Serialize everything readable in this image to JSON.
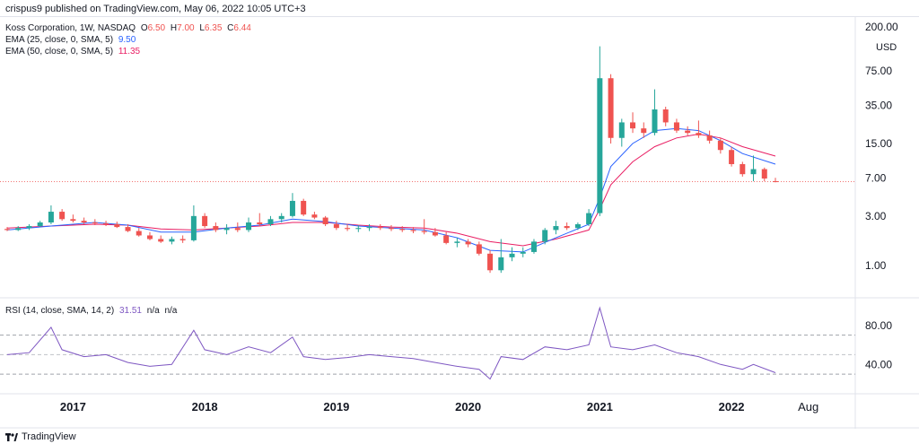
{
  "header": {
    "published": "crispus9 published on TradingView.com, May 06, 2022 10:05 UTC+3"
  },
  "legend_main": {
    "title": "Koss Corporation, 1W, NASDAQ",
    "o_label": "O",
    "o_value": "6.50",
    "h_label": "H",
    "h_value": "7.00",
    "l_label": "L",
    "l_value": "6.35",
    "c_label": "C",
    "c_value": "6.44",
    "ema25_label": "EMA (25, close, 0, SMA, 5)",
    "ema25_value": "9.50",
    "ema50_label": "EMA (50, close, 0, SMA, 5)",
    "ema50_value": "11.35"
  },
  "legend_rsi": {
    "label": "RSI (14, close, SMA, 14, 2)",
    "value": "31.51",
    "na1": "n/a",
    "na2": "n/a"
  },
  "currency": "USD",
  "footer": {
    "brand": "TradingView"
  },
  "colors": {
    "up": "#26a69a",
    "down": "#ef5350",
    "ema25": "#2962ff",
    "ema50": "#e91e63",
    "rsi": "#7e57c2",
    "text": "#131722",
    "grid": "#e0e3eb"
  },
  "chart_data": [
    {
      "type": "candlestick",
      "scale": "log",
      "y_ticks": [
        "200.00",
        "75.00",
        "35.00",
        "15.00",
        "7.00",
        "3.00",
        "1.00"
      ],
      "x_ticks": [
        "2017",
        "2018",
        "2019",
        "2020",
        "2021",
        "2022",
        "Aug"
      ],
      "last_price": 6.44,
      "candles": [
        {
          "x": "2016-07",
          "o": 2.25,
          "h": 2.35,
          "l": 2.15,
          "c": 2.2
        },
        {
          "x": "2016-08",
          "o": 2.2,
          "h": 2.4,
          "l": 2.15,
          "c": 2.3
        },
        {
          "x": "2016-09",
          "o": 2.3,
          "h": 2.5,
          "l": 2.2,
          "c": 2.4
        },
        {
          "x": "2016-10",
          "o": 2.4,
          "h": 2.7,
          "l": 2.35,
          "c": 2.6
        },
        {
          "x": "2016-11",
          "o": 2.6,
          "h": 3.8,
          "l": 2.5,
          "c": 3.3
        },
        {
          "x": "2016-12",
          "o": 3.3,
          "h": 3.5,
          "l": 2.7,
          "c": 2.8
        },
        {
          "x": "2017-01",
          "o": 2.8,
          "h": 3.1,
          "l": 2.6,
          "c": 2.7
        },
        {
          "x": "2017-02",
          "o": 2.7,
          "h": 2.9,
          "l": 2.5,
          "c": 2.6
        },
        {
          "x": "2017-03",
          "o": 2.6,
          "h": 2.8,
          "l": 2.45,
          "c": 2.55
        },
        {
          "x": "2017-04",
          "o": 2.55,
          "h": 2.7,
          "l": 2.4,
          "c": 2.5
        },
        {
          "x": "2017-05",
          "o": 2.5,
          "h": 2.65,
          "l": 2.3,
          "c": 2.35
        },
        {
          "x": "2017-06",
          "o": 2.35,
          "h": 2.5,
          "l": 2.1,
          "c": 2.15
        },
        {
          "x": "2017-07",
          "o": 2.15,
          "h": 2.3,
          "l": 1.9,
          "c": 1.95
        },
        {
          "x": "2017-08",
          "o": 1.95,
          "h": 2.1,
          "l": 1.75,
          "c": 1.8
        },
        {
          "x": "2017-09",
          "o": 1.8,
          "h": 1.95,
          "l": 1.65,
          "c": 1.7
        },
        {
          "x": "2017-10",
          "o": 1.7,
          "h": 1.9,
          "l": 1.6,
          "c": 1.8
        },
        {
          "x": "2017-11",
          "o": 1.8,
          "h": 1.95,
          "l": 1.65,
          "c": 1.75
        },
        {
          "x": "2017-12",
          "o": 1.75,
          "h": 3.8,
          "l": 1.7,
          "c": 3.0
        },
        {
          "x": "2018-01",
          "o": 3.0,
          "h": 3.2,
          "l": 2.3,
          "c": 2.4
        },
        {
          "x": "2018-02",
          "o": 2.4,
          "h": 2.6,
          "l": 2.1,
          "c": 2.2
        },
        {
          "x": "2018-03",
          "o": 2.2,
          "h": 2.5,
          "l": 2.0,
          "c": 2.3
        },
        {
          "x": "2018-04",
          "o": 2.3,
          "h": 2.6,
          "l": 2.1,
          "c": 2.2
        },
        {
          "x": "2018-05",
          "o": 2.2,
          "h": 2.9,
          "l": 2.1,
          "c": 2.6
        },
        {
          "x": "2018-06",
          "o": 2.6,
          "h": 3.2,
          "l": 2.4,
          "c": 2.5
        },
        {
          "x": "2018-07",
          "o": 2.5,
          "h": 3.0,
          "l": 2.4,
          "c": 2.8
        },
        {
          "x": "2018-08",
          "o": 2.8,
          "h": 3.2,
          "l": 2.6,
          "c": 3.0
        },
        {
          "x": "2018-09",
          "o": 3.0,
          "h": 5.0,
          "l": 2.9,
          "c": 4.2
        },
        {
          "x": "2018-10",
          "o": 4.2,
          "h": 4.4,
          "l": 3.0,
          "c": 3.1
        },
        {
          "x": "2018-11",
          "o": 3.1,
          "h": 3.3,
          "l": 2.8,
          "c": 2.9
        },
        {
          "x": "2018-12",
          "o": 2.9,
          "h": 3.0,
          "l": 2.4,
          "c": 2.5
        },
        {
          "x": "2019-01",
          "o": 2.5,
          "h": 2.7,
          "l": 2.2,
          "c": 2.3
        },
        {
          "x": "2019-02",
          "o": 2.3,
          "h": 2.5,
          "l": 2.15,
          "c": 2.25
        },
        {
          "x": "2019-03",
          "o": 2.25,
          "h": 2.45,
          "l": 2.1,
          "c": 2.3
        },
        {
          "x": "2019-04",
          "o": 2.3,
          "h": 2.5,
          "l": 2.15,
          "c": 2.35
        },
        {
          "x": "2019-05",
          "o": 2.35,
          "h": 2.5,
          "l": 2.2,
          "c": 2.3
        },
        {
          "x": "2019-06",
          "o": 2.3,
          "h": 2.45,
          "l": 2.15,
          "c": 2.25
        },
        {
          "x": "2019-07",
          "o": 2.25,
          "h": 2.4,
          "l": 2.1,
          "c": 2.2
        },
        {
          "x": "2019-08",
          "o": 2.2,
          "h": 2.35,
          "l": 2.05,
          "c": 2.15
        },
        {
          "x": "2019-09",
          "o": 2.15,
          "h": 2.8,
          "l": 2.0,
          "c": 2.1
        },
        {
          "x": "2019-10",
          "o": 2.1,
          "h": 2.3,
          "l": 1.9,
          "c": 1.95
        },
        {
          "x": "2019-11",
          "o": 1.95,
          "h": 2.1,
          "l": 1.6,
          "c": 1.65
        },
        {
          "x": "2019-12",
          "o": 1.65,
          "h": 1.85,
          "l": 1.5,
          "c": 1.7
        },
        {
          "x": "2020-01",
          "o": 1.7,
          "h": 1.8,
          "l": 1.5,
          "c": 1.6
        },
        {
          "x": "2020-02",
          "o": 1.6,
          "h": 1.7,
          "l": 1.25,
          "c": 1.3
        },
        {
          "x": "2020-03",
          "o": 1.3,
          "h": 1.4,
          "l": 0.85,
          "c": 0.9
        },
        {
          "x": "2020-04",
          "o": 0.9,
          "h": 1.8,
          "l": 0.85,
          "c": 1.2
        },
        {
          "x": "2020-05",
          "o": 1.2,
          "h": 1.5,
          "l": 1.1,
          "c": 1.3
        },
        {
          "x": "2020-06",
          "o": 1.3,
          "h": 1.5,
          "l": 1.2,
          "c": 1.35
        },
        {
          "x": "2020-07",
          "o": 1.35,
          "h": 1.8,
          "l": 1.3,
          "c": 1.7
        },
        {
          "x": "2020-08",
          "o": 1.7,
          "h": 2.3,
          "l": 1.6,
          "c": 2.2
        },
        {
          "x": "2020-09",
          "o": 2.2,
          "h": 2.7,
          "l": 2.0,
          "c": 2.4
        },
        {
          "x": "2020-10",
          "o": 2.4,
          "h": 2.6,
          "l": 2.2,
          "c": 2.3
        },
        {
          "x": "2020-11",
          "o": 2.3,
          "h": 2.6,
          "l": 2.2,
          "c": 2.5
        },
        {
          "x": "2020-12",
          "o": 2.5,
          "h": 3.5,
          "l": 2.4,
          "c": 3.2
        },
        {
          "x": "2021-01",
          "o": 3.2,
          "h": 130,
          "l": 3.0,
          "c": 64
        },
        {
          "x": "2021-02",
          "o": 64,
          "h": 70,
          "l": 15,
          "c": 17
        },
        {
          "x": "2021-03",
          "o": 17,
          "h": 26,
          "l": 14,
          "c": 24
        },
        {
          "x": "2021-04",
          "o": 24,
          "h": 30,
          "l": 19,
          "c": 21
        },
        {
          "x": "2021-05",
          "o": 21,
          "h": 24,
          "l": 17,
          "c": 19
        },
        {
          "x": "2021-06",
          "o": 19,
          "h": 50,
          "l": 18,
          "c": 32
        },
        {
          "x": "2021-07",
          "o": 32,
          "h": 34,
          "l": 22,
          "c": 24
        },
        {
          "x": "2021-08",
          "o": 24,
          "h": 26,
          "l": 19,
          "c": 20
        },
        {
          "x": "2021-09",
          "o": 20,
          "h": 22,
          "l": 18,
          "c": 19
        },
        {
          "x": "2021-10",
          "o": 19,
          "h": 25,
          "l": 17,
          "c": 18
        },
        {
          "x": "2021-11",
          "o": 18,
          "h": 20,
          "l": 15,
          "c": 16
        },
        {
          "x": "2021-12",
          "o": 16,
          "h": 17,
          "l": 12,
          "c": 13
        },
        {
          "x": "2022-01",
          "o": 13,
          "h": 14,
          "l": 9,
          "c": 9.5
        },
        {
          "x": "2022-02",
          "o": 9.5,
          "h": 10,
          "l": 7.2,
          "c": 7.6
        },
        {
          "x": "2022-03",
          "o": 7.6,
          "h": 11.5,
          "l": 6.5,
          "c": 8.5
        },
        {
          "x": "2022-04",
          "o": 8.5,
          "h": 8.8,
          "l": 6.5,
          "c": 6.9
        },
        {
          "x": "2022-05",
          "o": 6.5,
          "h": 7.0,
          "l": 6.35,
          "c": 6.44
        }
      ],
      "ema25": [
        [
          "2016-07",
          2.2
        ],
        [
          "2016-11",
          2.4
        ],
        [
          "2017-03",
          2.6
        ],
        [
          "2017-06",
          2.45
        ],
        [
          "2017-09",
          2.1
        ],
        [
          "2017-12",
          2.1
        ],
        [
          "2018-03",
          2.3
        ],
        [
          "2018-06",
          2.45
        ],
        [
          "2018-09",
          2.8
        ],
        [
          "2018-12",
          2.65
        ],
        [
          "2019-03",
          2.4
        ],
        [
          "2019-06",
          2.3
        ],
        [
          "2019-09",
          2.2
        ],
        [
          "2019-12",
          1.85
        ],
        [
          "2020-03",
          1.4
        ],
        [
          "2020-06",
          1.35
        ],
        [
          "2020-09",
          1.85
        ],
        [
          "2020-12",
          2.5
        ],
        [
          "2021-01",
          4.5
        ],
        [
          "2021-02",
          9
        ],
        [
          "2021-04",
          15
        ],
        [
          "2021-06",
          20
        ],
        [
          "2021-08",
          21
        ],
        [
          "2021-10",
          20
        ],
        [
          "2021-12",
          16
        ],
        [
          "2022-02",
          12
        ],
        [
          "2022-05",
          9.5
        ]
      ],
      "ema50": [
        [
          "2016-07",
          2.3
        ],
        [
          "2016-11",
          2.4
        ],
        [
          "2017-03",
          2.5
        ],
        [
          "2017-06",
          2.45
        ],
        [
          "2017-09",
          2.25
        ],
        [
          "2017-12",
          2.2
        ],
        [
          "2018-03",
          2.3
        ],
        [
          "2018-06",
          2.4
        ],
        [
          "2018-09",
          2.6
        ],
        [
          "2018-12",
          2.6
        ],
        [
          "2019-03",
          2.45
        ],
        [
          "2019-06",
          2.35
        ],
        [
          "2019-09",
          2.3
        ],
        [
          "2019-12",
          2.05
        ],
        [
          "2020-03",
          1.7
        ],
        [
          "2020-06",
          1.55
        ],
        [
          "2020-09",
          1.8
        ],
        [
          "2020-12",
          2.2
        ],
        [
          "2021-01",
          3.5
        ],
        [
          "2021-02",
          6
        ],
        [
          "2021-04",
          10
        ],
        [
          "2021-06",
          14
        ],
        [
          "2021-08",
          17
        ],
        [
          "2021-10",
          18.5
        ],
        [
          "2021-12",
          17
        ],
        [
          "2022-02",
          14
        ],
        [
          "2022-05",
          11.35
        ]
      ]
    },
    {
      "type": "line",
      "name": "RSI",
      "y_ticks": [
        "80.00",
        "40.00"
      ],
      "ylim": [
        20,
        100
      ],
      "bands": [
        30,
        50,
        70
      ],
      "points": [
        [
          "2016-07",
          50
        ],
        [
          "2016-09",
          52
        ],
        [
          "2016-11",
          78
        ],
        [
          "2016-12",
          55
        ],
        [
          "2017-02",
          48
        ],
        [
          "2017-04",
          50
        ],
        [
          "2017-06",
          42
        ],
        [
          "2017-08",
          38
        ],
        [
          "2017-10",
          40
        ],
        [
          "2017-12",
          75
        ],
        [
          "2018-01",
          55
        ],
        [
          "2018-03",
          50
        ],
        [
          "2018-05",
          58
        ],
        [
          "2018-07",
          52
        ],
        [
          "2018-09",
          68
        ],
        [
          "2018-10",
          48
        ],
        [
          "2018-12",
          45
        ],
        [
          "2019-02",
          47
        ],
        [
          "2019-04",
          50
        ],
        [
          "2019-06",
          48
        ],
        [
          "2019-08",
          46
        ],
        [
          "2019-10",
          42
        ],
        [
          "2019-12",
          38
        ],
        [
          "2020-02",
          35
        ],
        [
          "2020-03",
          25
        ],
        [
          "2020-04",
          48
        ],
        [
          "2020-06",
          45
        ],
        [
          "2020-08",
          58
        ],
        [
          "2020-10",
          55
        ],
        [
          "2020-12",
          60
        ],
        [
          "2021-01",
          98
        ],
        [
          "2021-02",
          58
        ],
        [
          "2021-04",
          55
        ],
        [
          "2021-06",
          60
        ],
        [
          "2021-08",
          52
        ],
        [
          "2021-10",
          48
        ],
        [
          "2021-12",
          40
        ],
        [
          "2022-02",
          35
        ],
        [
          "2022-03",
          40
        ],
        [
          "2022-05",
          31.51
        ]
      ]
    }
  ]
}
